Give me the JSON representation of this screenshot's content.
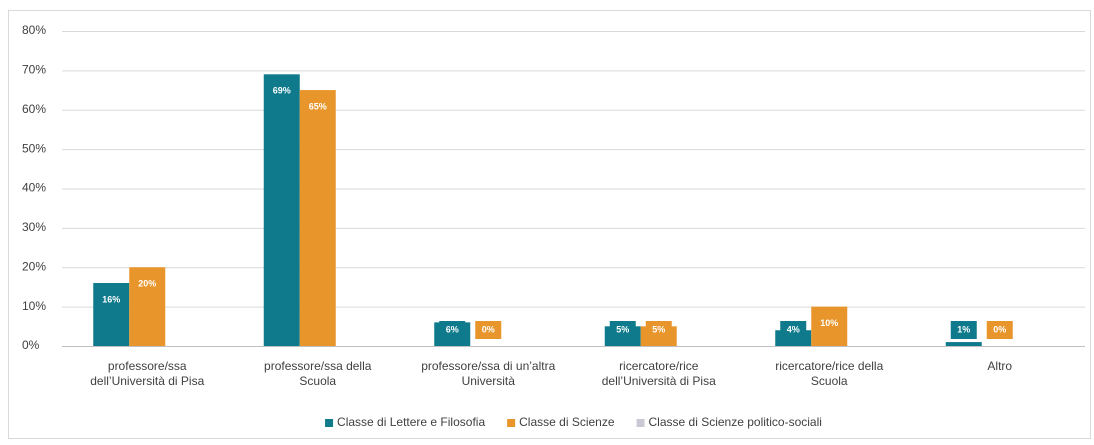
{
  "chart_data": {
    "type": "bar",
    "categories": [
      "professore/ssa\ndell’Università di Pisa",
      "professore/ssa della\nScuola",
      "professore/ssa di un’altra\nUniversità",
      "ricercatore/rice\ndell’Università di Pisa",
      "ricercatore/rice della\nScuola",
      "Altro"
    ],
    "series": [
      {
        "name": "Classe di Lettere e Filosofia",
        "color": "#0e7a8c",
        "values": [
          16,
          69,
          6,
          5,
          4,
          1
        ],
        "value_labels": [
          "16%",
          "69%",
          "6%",
          "5%",
          "4%",
          "1%"
        ]
      },
      {
        "name": "Classe di Scienze",
        "color": "#e8962c",
        "values": [
          20,
          65,
          0,
          5,
          10,
          0
        ],
        "value_labels": [
          "20%",
          "65%",
          "0%",
          "5%",
          "10%",
          "0%"
        ]
      },
      {
        "name": "Classe di Scienze politico-sociali",
        "color": "#c9c9d6",
        "values": [
          null,
          null,
          null,
          null,
          null,
          null
        ]
      }
    ],
    "ylim": [
      0,
      80
    ],
    "yticks": [
      {
        "value": 0,
        "label": "0%"
      },
      {
        "value": 10,
        "label": "10%"
      },
      {
        "value": 20,
        "label": "20%"
      },
      {
        "value": 30,
        "label": "30%"
      },
      {
        "value": 40,
        "label": "40%"
      },
      {
        "value": 50,
        "label": "50%"
      },
      {
        "value": 60,
        "label": "60%"
      },
      {
        "value": 70,
        "label": "70%"
      },
      {
        "value": 80,
        "label": "80%"
      }
    ],
    "grid": true,
    "legend": "bottom"
  }
}
